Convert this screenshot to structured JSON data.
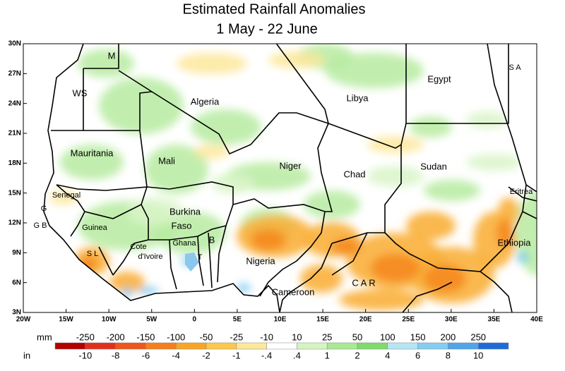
{
  "title": [
    "Estimated Rainfall Anomalies",
    "1 May - 22 June"
  ],
  "map": {
    "lat_labels": [
      "30N",
      "27N",
      "24N",
      "21N",
      "18N",
      "15N",
      "12N",
      "9N",
      "6N",
      "3N"
    ],
    "lon_labels": [
      "20W",
      "15W",
      "10W",
      "5W",
      "0",
      "5E",
      "10E",
      "15E",
      "20E",
      "25E",
      "30E",
      "35E",
      "40E"
    ],
    "countries": [
      "M",
      "WS",
      "Algeria",
      "Libya",
      "Egypt",
      "S A",
      "Mauritania",
      "Mali",
      "Niger",
      "Chad",
      "Sudan",
      "Senegal",
      "Eritrea",
      "G",
      "G B",
      "Guinea",
      "Burkina",
      "Faso",
      "Ethiopia",
      "S L",
      "Cote",
      "d'Ivoire",
      "Ghana",
      "T",
      "B",
      "Nigeria",
      "Cameroon",
      "C A R"
    ]
  },
  "legend": {
    "mm_label": "mm",
    "in_label": "in",
    "mm": [
      "-250",
      "-200",
      "-150",
      "-100",
      "-50",
      "-25",
      "-10",
      "10",
      "25",
      "50",
      "100",
      "150",
      "200",
      "250"
    ],
    "in": [
      "-10",
      "-8",
      "-6",
      "-4",
      "-2",
      "-1",
      "-.4",
      ".4",
      "1",
      "2",
      "4",
      "6",
      "8",
      "10"
    ],
    "colors": [
      "#b40000",
      "#e0301c",
      "#f0561a",
      "#f57f1a",
      "#f9a524",
      "#fcc84a",
      "#fde89a",
      "#ffffff",
      "#d4f5c2",
      "#a9e994",
      "#7fdb6c",
      "#b4e6f4",
      "#84cdf2",
      "#4fa5ea",
      "#1f6ad8"
    ]
  }
}
